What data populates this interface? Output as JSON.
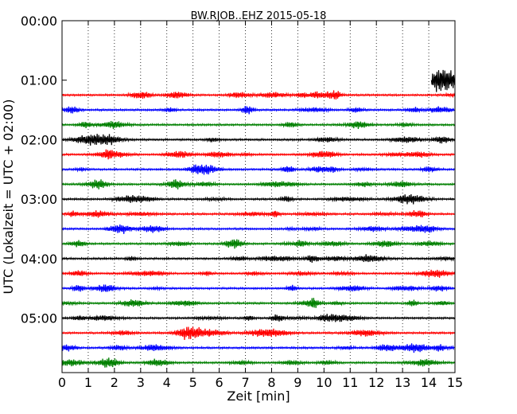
{
  "chart_data": {
    "type": "line",
    "title": "BW.RJOB..EHZ 2015-05-18",
    "xlabel": "Zeit  [min]",
    "ylabel": "UTC (Lokalzeit = UTC + 02:00)",
    "xlim": [
      0,
      15
    ],
    "ylim": [
      "05:55",
      "00:00"
    ],
    "grid": "vertical dotted at each minute",
    "x_ticks": [
      "0",
      "1",
      "2",
      "3",
      "4",
      "5",
      "6",
      "7",
      "8",
      "9",
      "10",
      "11",
      "12",
      "13",
      "14",
      "15"
    ],
    "y_ticks": [
      "00:00",
      "01:00",
      "02:00",
      "03:00",
      "04:00",
      "05:00"
    ],
    "series": [
      {
        "start": "01:00",
        "color": "#000000",
        "x_range": [
          14.1,
          15
        ]
      },
      {
        "start": "01:15",
        "color": "#ff0000",
        "x_range": [
          0,
          15
        ]
      },
      {
        "start": "01:30",
        "color": "#0000ff",
        "x_range": [
          0,
          15
        ]
      },
      {
        "start": "01:45",
        "color": "#008000",
        "x_range": [
          0,
          15
        ]
      },
      {
        "start": "02:00",
        "color": "#000000",
        "x_range": [
          0,
          15
        ]
      },
      {
        "start": "02:15",
        "color": "#ff0000",
        "x_range": [
          0,
          15
        ]
      },
      {
        "start": "02:30",
        "color": "#0000ff",
        "x_range": [
          0,
          15
        ]
      },
      {
        "start": "02:45",
        "color": "#008000",
        "x_range": [
          0,
          15
        ]
      },
      {
        "start": "03:00",
        "color": "#000000",
        "x_range": [
          0,
          15
        ]
      },
      {
        "start": "03:15",
        "color": "#ff0000",
        "x_range": [
          0,
          15
        ]
      },
      {
        "start": "03:30",
        "color": "#0000ff",
        "x_range": [
          0,
          15
        ]
      },
      {
        "start": "03:45",
        "color": "#008000",
        "x_range": [
          0,
          15
        ]
      },
      {
        "start": "04:00",
        "color": "#000000",
        "x_range": [
          0,
          15
        ]
      },
      {
        "start": "04:15",
        "color": "#ff0000",
        "x_range": [
          0,
          15
        ]
      },
      {
        "start": "04:30",
        "color": "#0000ff",
        "x_range": [
          0,
          15
        ]
      },
      {
        "start": "04:45",
        "color": "#008000",
        "x_range": [
          0,
          15
        ]
      },
      {
        "start": "05:00",
        "color": "#000000",
        "x_range": [
          0,
          15
        ]
      },
      {
        "start": "05:15",
        "color": "#ff0000",
        "x_range": [
          0,
          15
        ]
      },
      {
        "start": "05:30",
        "color": "#0000ff",
        "x_range": [
          0,
          15
        ]
      },
      {
        "start": "05:45",
        "color": "#008000",
        "x_range": [
          0,
          15
        ]
      }
    ]
  }
}
